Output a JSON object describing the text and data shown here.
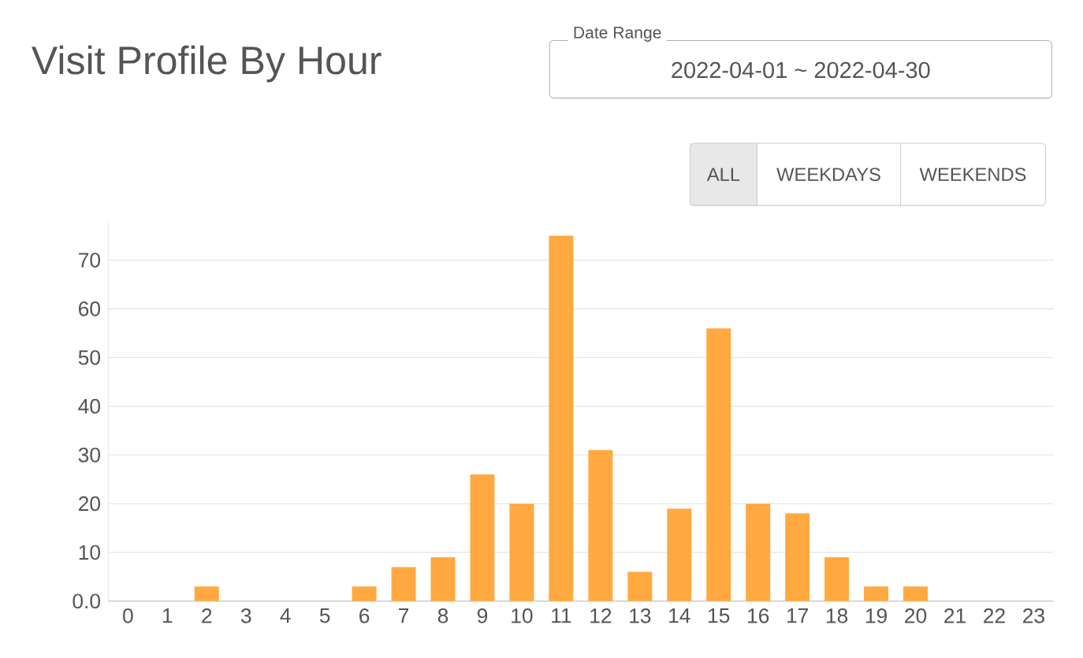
{
  "chart_data": {
    "type": "bar",
    "title": "Visit Profile By Hour",
    "annotations": [
      "Date Range",
      "2022-04-01  ~  2022-04-30",
      "ALL",
      "WEEKDAYS",
      "WEEKENDS"
    ],
    "categories": [
      "0",
      "1",
      "2",
      "3",
      "4",
      "5",
      "6",
      "7",
      "8",
      "9",
      "10",
      "11",
      "12",
      "13",
      "14",
      "15",
      "16",
      "17",
      "18",
      "19",
      "20",
      "21",
      "22",
      "23"
    ],
    "values": [
      0,
      0,
      3,
      0,
      0,
      0,
      3,
      7,
      9,
      26,
      20,
      75,
      31,
      6,
      19,
      56,
      20,
      18,
      9,
      3,
      3,
      0,
      0,
      0
    ],
    "color": "#ffa940",
    "ylim": [
      0,
      78
    ],
    "yticks": [
      {
        "value": 0,
        "label": "0.0"
      },
      10,
      20,
      30,
      40,
      50,
      60,
      70
    ],
    "grid": "y"
  }
}
